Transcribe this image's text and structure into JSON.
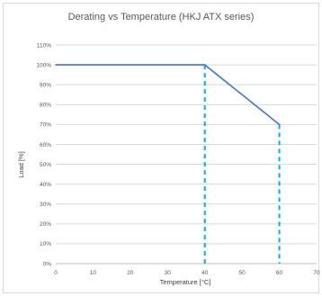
{
  "chart_data": {
    "type": "line",
    "title": "Derating vs Temperature (HKJ ATX series)",
    "xlabel": "Temperature [°C]",
    "ylabel": "Load [%]",
    "xlim": [
      0,
      70
    ],
    "ylim": [
      0,
      110
    ],
    "x_ticks": [
      0,
      10,
      20,
      30,
      40,
      50,
      60,
      70
    ],
    "y_ticks": [
      0,
      10,
      20,
      30,
      40,
      50,
      60,
      70,
      80,
      90,
      100,
      110
    ],
    "y_tick_labels": [
      "0%",
      "10%",
      "20%",
      "30%",
      "40%",
      "50%",
      "60%",
      "70%",
      "80%",
      "90%",
      "100%",
      "110%"
    ],
    "x": [
      0,
      40,
      60
    ],
    "y": [
      100,
      100,
      70
    ],
    "reference_lines": [
      {
        "x": 40,
        "y": 100,
        "style": "dashed",
        "color": "#00b0f0"
      },
      {
        "x": 60,
        "y": 70,
        "style": "dashed",
        "color": "#00b0f0"
      }
    ],
    "grid": true,
    "legend": "none",
    "colors": {
      "series": "#4472c4",
      "guides": "#00b0f0",
      "grid": "#d9d9d9"
    }
  }
}
